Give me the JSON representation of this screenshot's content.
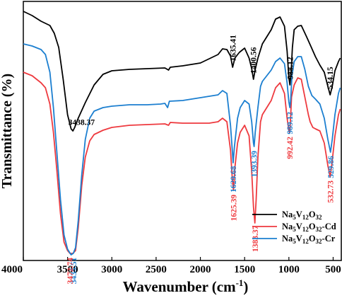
{
  "chart_data": {
    "type": "line",
    "xlabel": "Wavenumber (cm",
    "xlabel_sup": "-1",
    "xlabel_end": ")",
    "ylabel": "Transmittance (%)",
    "xlim": [
      4000,
      400
    ],
    "x_reversed": true,
    "y_ticks_shown": false,
    "x_ticks": [
      4000,
      3500,
      3000,
      2500,
      2000,
      1500,
      1000,
      500
    ],
    "x_tick_labels": [
      "4000",
      "3500",
      "3000",
      "2500",
      "2000",
      "1500",
      "1000",
      "500"
    ],
    "legend_position": "bottom-right",
    "series": [
      {
        "name": "Na5V12O32",
        "legend_parts": [
          [
            "Na",
            ""
          ],
          [
            "5",
            "sub"
          ],
          [
            "V",
            ""
          ],
          [
            "12",
            "sub"
          ],
          [
            "O",
            ""
          ],
          [
            "32",
            "sub"
          ]
        ],
        "color": "#000000",
        "points": [
          [
            4000,
            14
          ],
          [
            3900,
            20
          ],
          [
            3800,
            28
          ],
          [
            3700,
            34
          ],
          [
            3650,
            45
          ],
          [
            3600,
            65
          ],
          [
            3550,
            110
          ],
          [
            3500,
            160
          ],
          [
            3460,
            180
          ],
          [
            3440,
            183
          ],
          [
            3420,
            178
          ],
          [
            3380,
            165
          ],
          [
            3300,
            143
          ],
          [
            3200,
            118
          ],
          [
            3100,
            103
          ],
          [
            3000,
            98
          ],
          [
            2800,
            96
          ],
          [
            2600,
            95
          ],
          [
            2400,
            94
          ],
          [
            2360,
            97
          ],
          [
            2340,
            93
          ],
          [
            2200,
            91
          ],
          [
            2000,
            87
          ],
          [
            1900,
            81
          ],
          [
            1800,
            75
          ],
          [
            1750,
            67
          ],
          [
            1700,
            68
          ],
          [
            1660,
            77
          ],
          [
            1636,
            93
          ],
          [
            1610,
            80
          ],
          [
            1560,
            72
          ],
          [
            1500,
            66
          ],
          [
            1450,
            80
          ],
          [
            1420,
            95
          ],
          [
            1400,
            110
          ],
          [
            1380,
            96
          ],
          [
            1350,
            80
          ],
          [
            1300,
            60
          ],
          [
            1200,
            40
          ],
          [
            1150,
            25
          ],
          [
            1100,
            22
          ],
          [
            1050,
            35
          ],
          [
            1020,
            70
          ],
          [
            1000,
            108
          ],
          [
            988,
            118
          ],
          [
            975,
            100
          ],
          [
            960,
            65
          ],
          [
            940,
            40
          ],
          [
            900,
            35
          ],
          [
            860,
            34
          ],
          [
            800,
            50
          ],
          [
            750,
            64
          ],
          [
            700,
            78
          ],
          [
            650,
            90
          ],
          [
            600,
            100
          ],
          [
            560,
            120
          ],
          [
            534,
            132
          ],
          [
            510,
            120
          ],
          [
            480,
            98
          ],
          [
            440,
            85
          ],
          [
            420,
            80
          ]
        ]
      },
      {
        "name": "Na5V12O32-Cd",
        "legend_parts": [
          [
            "Na",
            ""
          ],
          [
            "5",
            "sub"
          ],
          [
            "V",
            ""
          ],
          [
            "12",
            "sub"
          ],
          [
            "O",
            ""
          ],
          [
            "32",
            "sub"
          ],
          [
            "-Cd",
            ""
          ]
        ],
        "color": "#ee3a3f",
        "points": [
          [
            4000,
            100
          ],
          [
            3900,
            105
          ],
          [
            3800,
            115
          ],
          [
            3750,
            122
          ],
          [
            3700,
            145
          ],
          [
            3660,
            185
          ],
          [
            3620,
            240
          ],
          [
            3580,
            300
          ],
          [
            3540,
            340
          ],
          [
            3500,
            352
          ],
          [
            3472,
            356
          ],
          [
            3440,
            356
          ],
          [
            3410,
            352
          ],
          [
            3380,
            320
          ],
          [
            3340,
            260
          ],
          [
            3300,
            220
          ],
          [
            3250,
            197
          ],
          [
            3200,
            188
          ],
          [
            3100,
            182
          ],
          [
            3000,
            178
          ],
          [
            2800,
            175
          ],
          [
            2600,
            174
          ],
          [
            2400,
            173
          ],
          [
            2360,
            175
          ],
          [
            2340,
            171
          ],
          [
            2200,
            172
          ],
          [
            2000,
            172
          ],
          [
            1900,
            172
          ],
          [
            1800,
            170
          ],
          [
            1750,
            165
          ],
          [
            1700,
            170
          ],
          [
            1660,
            210
          ],
          [
            1640,
            250
          ],
          [
            1625,
            267
          ],
          [
            1610,
            235
          ],
          [
            1580,
            200
          ],
          [
            1550,
            185
          ],
          [
            1500,
            175
          ],
          [
            1450,
            190
          ],
          [
            1420,
            240
          ],
          [
            1400,
            290
          ],
          [
            1384,
            313
          ],
          [
            1370,
            280
          ],
          [
            1350,
            220
          ],
          [
            1320,
            170
          ],
          [
            1300,
            160
          ],
          [
            1200,
            140
          ],
          [
            1150,
            122
          ],
          [
            1100,
            115
          ],
          [
            1050,
            130
          ],
          [
            1020,
            165
          ],
          [
            1000,
            182
          ],
          [
            992,
            185
          ],
          [
            985,
            176
          ],
          [
            970,
            135
          ],
          [
            940,
            118
          ],
          [
            900,
            108
          ],
          [
            860,
            110
          ],
          [
            820,
            135
          ],
          [
            780,
            160
          ],
          [
            760,
            170
          ],
          [
            730,
            178
          ],
          [
            700,
            180
          ],
          [
            650,
            183
          ],
          [
            600,
            200
          ],
          [
            560,
            232
          ],
          [
            533,
            248
          ],
          [
            510,
            225
          ],
          [
            480,
            190
          ],
          [
            440,
            160
          ],
          [
            420,
            152
          ]
        ]
      },
      {
        "name": "Na5V12O32-Cr",
        "legend_parts": [
          [
            "Na",
            ""
          ],
          [
            "5",
            "sub"
          ],
          [
            "V",
            ""
          ],
          [
            "12",
            "sub"
          ],
          [
            "O",
            ""
          ],
          [
            "32",
            "sub"
          ],
          [
            "-Cr",
            ""
          ]
        ],
        "color": "#1c7fd0",
        "points": [
          [
            4000,
            60
          ],
          [
            3900,
            63
          ],
          [
            3800,
            68
          ],
          [
            3750,
            75
          ],
          [
            3700,
            100
          ],
          [
            3660,
            150
          ],
          [
            3620,
            215
          ],
          [
            3580,
            280
          ],
          [
            3540,
            330
          ],
          [
            3500,
            350
          ],
          [
            3460,
            358
          ],
          [
            3436,
            356
          ],
          [
            3410,
            348
          ],
          [
            3380,
            310
          ],
          [
            3340,
            245
          ],
          [
            3300,
            195
          ],
          [
            3250,
            165
          ],
          [
            3200,
            155
          ],
          [
            3100,
            150
          ],
          [
            3000,
            148
          ],
          [
            2800,
            146
          ],
          [
            2600,
            146
          ],
          [
            2450,
            145
          ],
          [
            2400,
            144
          ],
          [
            2370,
            150
          ],
          [
            2350,
            141
          ],
          [
            2200,
            140
          ],
          [
            2000,
            136
          ],
          [
            1900,
            134
          ],
          [
            1800,
            132
          ],
          [
            1750,
            126
          ],
          [
            1700,
            130
          ],
          [
            1660,
            175
          ],
          [
            1640,
            210
          ],
          [
            1630,
            228
          ],
          [
            1615,
            205
          ],
          [
            1580,
            165
          ],
          [
            1550,
            150
          ],
          [
            1500,
            140
          ],
          [
            1450,
            145
          ],
          [
            1420,
            170
          ],
          [
            1400,
            200
          ],
          [
            1393,
            205
          ],
          [
            1380,
            185
          ],
          [
            1350,
            150
          ],
          [
            1320,
            120
          ],
          [
            1300,
            113
          ],
          [
            1200,
            97
          ],
          [
            1150,
            85
          ],
          [
            1100,
            80
          ],
          [
            1050,
            88
          ],
          [
            1020,
            115
          ],
          [
            1000,
            142
          ],
          [
            989,
            150
          ],
          [
            980,
            140
          ],
          [
            965,
            105
          ],
          [
            940,
            85
          ],
          [
            900,
            78
          ],
          [
            860,
            78
          ],
          [
            820,
            96
          ],
          [
            780,
            120
          ],
          [
            740,
            133
          ],
          [
            700,
            138
          ],
          [
            650,
            145
          ],
          [
            600,
            165
          ],
          [
            560,
            195
          ],
          [
            530,
            213
          ],
          [
            510,
            195
          ],
          [
            480,
            160
          ],
          [
            440,
            130
          ],
          [
            420,
            122
          ]
        ]
      }
    ],
    "annotations": [
      {
        "text": "3438.37",
        "x": 3438,
        "series": 0,
        "rotated": false
      },
      {
        "text": "1635.41",
        "x": 1635,
        "series": 0,
        "rotated": true
      },
      {
        "text": "1400.56",
        "x": 1400,
        "series": 0,
        "rotated": true
      },
      {
        "text": "988.12",
        "x": 988,
        "series": 0,
        "rotated": true
      },
      {
        "text": "534.15",
        "x": 534,
        "series": 0,
        "rotated": true
      },
      {
        "text": "1629.68",
        "x": 1629,
        "series": 2,
        "rotated": true
      },
      {
        "text": "1393.39",
        "x": 1393,
        "series": 2,
        "rotated": true
      },
      {
        "text": "989.12",
        "x": 989,
        "series": 2,
        "rotated": true
      },
      {
        "text": "529.86",
        "x": 529,
        "series": 2,
        "rotated": true
      },
      {
        "text": "3435.51",
        "x": 3435,
        "series": 2,
        "rotated": true
      },
      {
        "text": "3472.74",
        "x": 3472,
        "series": 1,
        "rotated": true
      },
      {
        "text": "1625.39",
        "x": 1625,
        "series": 1,
        "rotated": true
      },
      {
        "text": "1383.37",
        "x": 1383,
        "series": 1,
        "rotated": true
      },
      {
        "text": "992.42",
        "x": 992,
        "series": 1,
        "rotated": true
      },
      {
        "text": "532.73",
        "x": 532,
        "series": 1,
        "rotated": true
      }
    ]
  }
}
